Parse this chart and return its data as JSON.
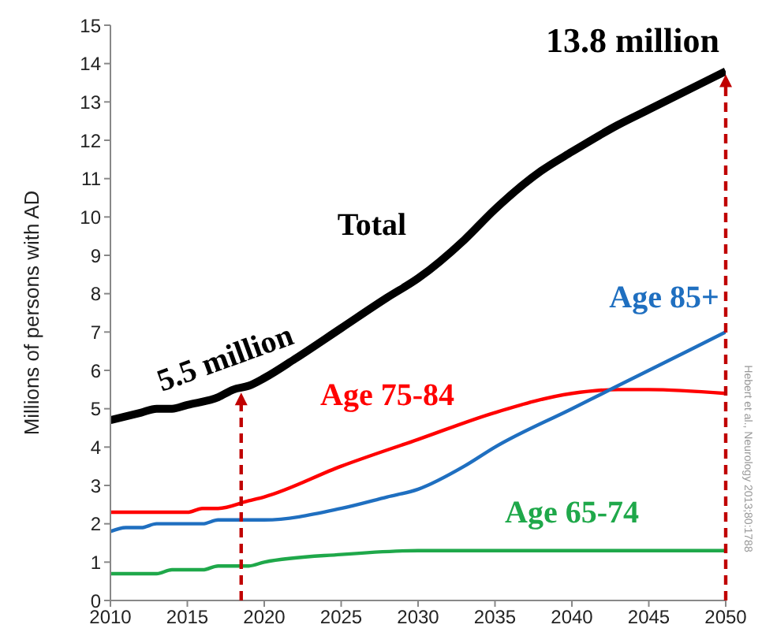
{
  "chart_data": {
    "type": "line",
    "ylabel": "Millions of persons with AD",
    "xlim": [
      2010,
      2050
    ],
    "xticks": [
      2010,
      2015,
      2020,
      2025,
      2030,
      2035,
      2040,
      2045,
      2050
    ],
    "ylim": [
      0,
      15
    ],
    "yticks": [
      0,
      1,
      2,
      3,
      4,
      5,
      6,
      7,
      8,
      9,
      10,
      11,
      12,
      13,
      14,
      15
    ],
    "line_style": "solid",
    "series": [
      {
        "name": "Total",
        "color": "#000000",
        "x": [
          2010,
          2012,
          2013,
          2014,
          2015,
          2017,
          2018,
          2019,
          2020,
          2022,
          2025,
          2028,
          2030,
          2033,
          2035,
          2038,
          2040,
          2043,
          2045,
          2048,
          2050
        ],
        "values": [
          4.7,
          4.9,
          5.0,
          5.0,
          5.1,
          5.3,
          5.5,
          5.6,
          5.8,
          6.3,
          7.1,
          7.9,
          8.4,
          9.4,
          10.2,
          11.2,
          11.7,
          12.4,
          12.8,
          13.4,
          13.8
        ]
      },
      {
        "name": "Age 75-84",
        "color": "#ff0000",
        "x": [
          2010,
          2015,
          2016,
          2017,
          2019,
          2020,
          2025,
          2030,
          2035,
          2040,
          2043,
          2045,
          2050
        ],
        "values": [
          2.3,
          2.3,
          2.4,
          2.4,
          2.6,
          2.7,
          3.5,
          4.2,
          4.9,
          5.4,
          5.5,
          5.5,
          5.4
        ]
      },
      {
        "name": "Age 85+",
        "color": "#1f6fc0",
        "x": [
          2010,
          2011,
          2012,
          2013,
          2016,
          2017,
          2020,
          2025,
          2028,
          2030,
          2033,
          2035,
          2040,
          2045,
          2050
        ],
        "values": [
          1.8,
          1.9,
          1.9,
          2.0,
          2.0,
          2.1,
          2.1,
          2.4,
          2.7,
          2.9,
          3.5,
          4.0,
          5.0,
          6.0,
          7.0
        ]
      },
      {
        "name": "Age 65-74",
        "color": "#1fa84a",
        "x": [
          2010,
          2013,
          2014,
          2016,
          2017,
          2019,
          2020,
          2025,
          2030,
          2035,
          2040,
          2050
        ],
        "values": [
          0.7,
          0.7,
          0.8,
          0.8,
          0.9,
          0.9,
          1.0,
          1.2,
          1.3,
          1.3,
          1.3,
          1.3
        ]
      }
    ],
    "annotations": [
      {
        "text": "5.5 million",
        "x": 2018.5,
        "y": 5.5
      },
      {
        "text": "13.8 million",
        "x": 2050,
        "y": 13.8
      },
      "Hebert et al., Neurology 2013;80:1788"
    ]
  }
}
